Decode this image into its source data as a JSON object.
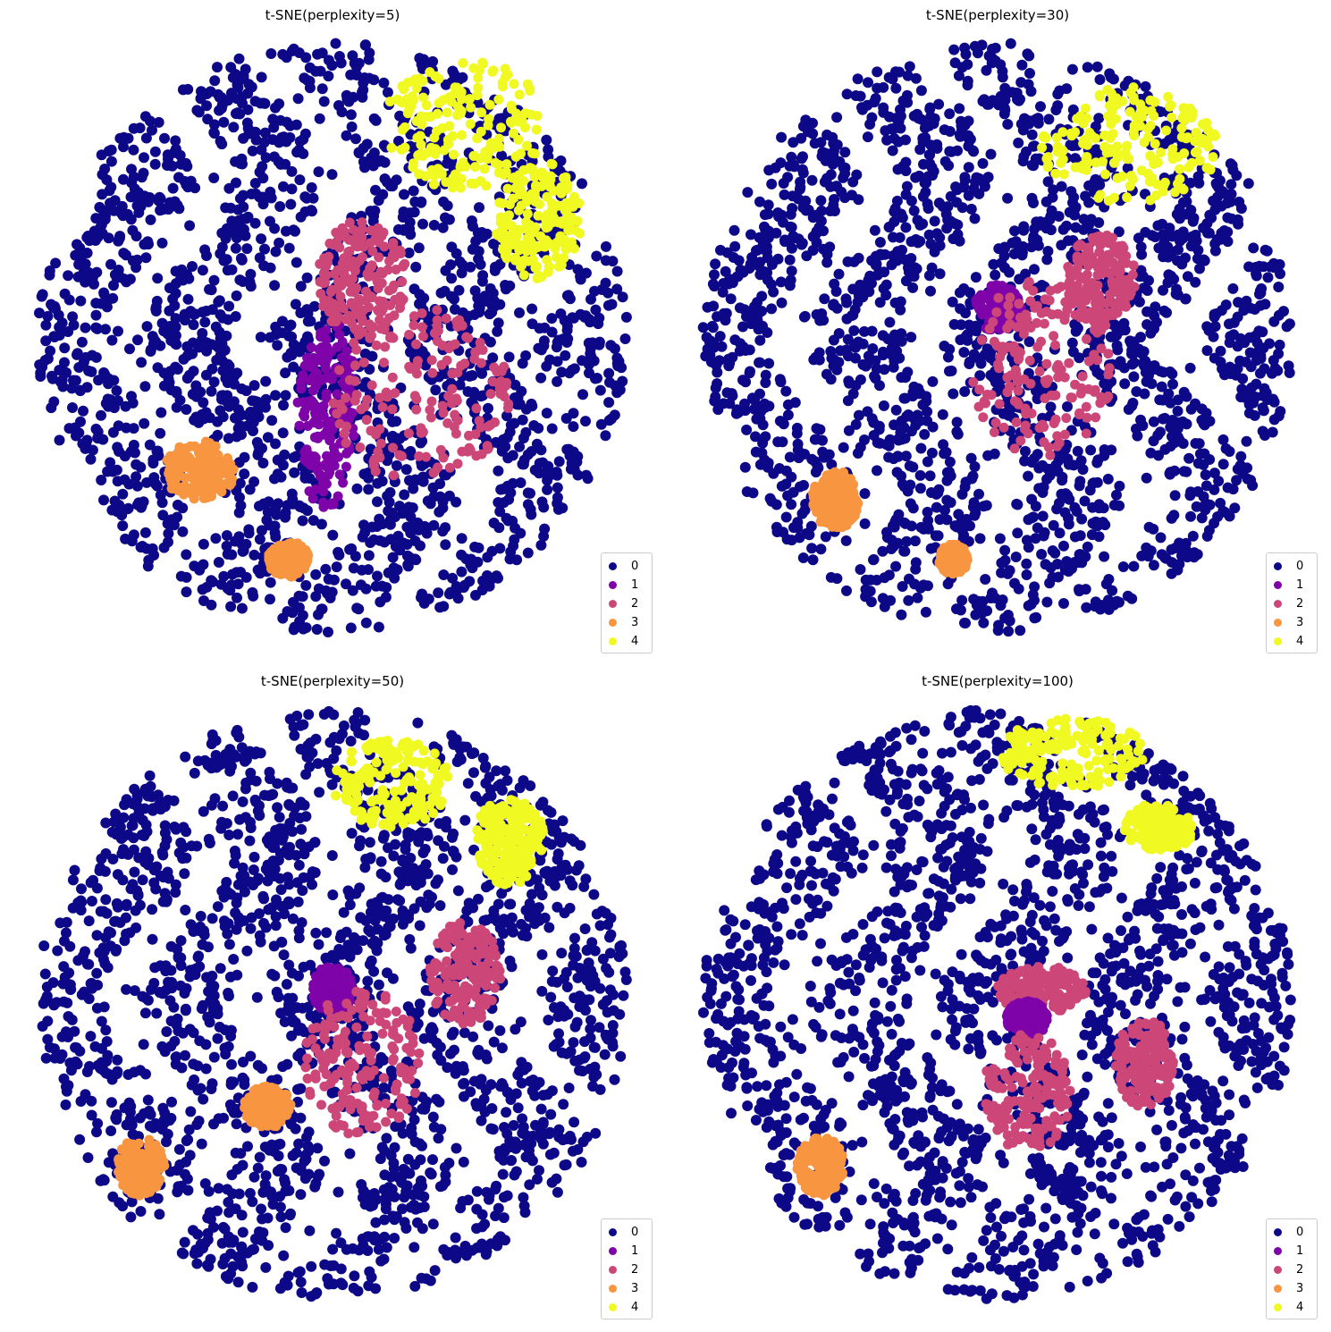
{
  "colors": [
    "#0d0887",
    "#7e03a8",
    "#cc4778",
    "#f89540",
    "#f0f921"
  ],
  "chart_data": [
    {
      "type": "scatter",
      "title": "t-SNE(perplexity=5)",
      "axes": "off",
      "legend": {
        "placement": "lower-right",
        "entries": [
          "0",
          "1",
          "2",
          "3",
          "4"
        ]
      },
      "clusters": [
        {
          "cls": 0,
          "cx": 0,
          "cy": 0,
          "rx": 1.0,
          "ry": 1.0
        },
        {
          "cls": 4,
          "cx": 0.45,
          "cy": 0.72,
          "rx": 0.28,
          "ry": 0.22
        },
        {
          "cls": 4,
          "cx": 0.7,
          "cy": 0.4,
          "rx": 0.15,
          "ry": 0.2
        },
        {
          "cls": 1,
          "cx": -0.02,
          "cy": -0.25,
          "rx": 0.1,
          "ry": 0.35
        },
        {
          "cls": 2,
          "cx": 0.3,
          "cy": -0.2,
          "rx": 0.3,
          "ry": 0.3
        },
        {
          "cls": 2,
          "cx": 0.1,
          "cy": 0.2,
          "rx": 0.15,
          "ry": 0.2
        },
        {
          "cls": 3,
          "cx": -0.45,
          "cy": -0.45,
          "rx": 0.12,
          "ry": 0.1
        },
        {
          "cls": 3,
          "cx": -0.15,
          "cy": -0.75,
          "rx": 0.07,
          "ry": 0.06
        }
      ]
    },
    {
      "type": "scatter",
      "title": "t-SNE(perplexity=30)",
      "axes": "off",
      "legend": {
        "placement": "lower-right",
        "entries": [
          "0",
          "1",
          "2",
          "3",
          "4"
        ]
      },
      "clusters": [
        {
          "cls": 0,
          "cx": 0,
          "cy": 0,
          "rx": 1.0,
          "ry": 1.0
        },
        {
          "cls": 4,
          "cx": 0.45,
          "cy": 0.65,
          "rx": 0.3,
          "ry": 0.2
        },
        {
          "cls": 1,
          "cx": 0.0,
          "cy": 0.1,
          "rx": 0.08,
          "ry": 0.08
        },
        {
          "cls": 2,
          "cx": 0.15,
          "cy": -0.1,
          "rx": 0.25,
          "ry": 0.3
        },
        {
          "cls": 2,
          "cx": 0.35,
          "cy": 0.2,
          "rx": 0.12,
          "ry": 0.15
        },
        {
          "cls": 3,
          "cx": -0.55,
          "cy": -0.55,
          "rx": 0.08,
          "ry": 0.1
        },
        {
          "cls": 3,
          "cx": -0.15,
          "cy": -0.75,
          "rx": 0.05,
          "ry": 0.05
        }
      ]
    },
    {
      "type": "scatter",
      "title": "t-SNE(perplexity=50)",
      "axes": "off",
      "legend": {
        "placement": "lower-right",
        "entries": [
          "0",
          "1",
          "2",
          "3",
          "4"
        ]
      },
      "clusters": [
        {
          "cls": 0,
          "cx": 0,
          "cy": 0,
          "rx": 1.0,
          "ry": 1.0
        },
        {
          "cls": 4,
          "cx": 0.2,
          "cy": 0.75,
          "rx": 0.2,
          "ry": 0.15
        },
        {
          "cls": 4,
          "cx": 0.6,
          "cy": 0.55,
          "rx": 0.12,
          "ry": 0.15
        },
        {
          "cls": 1,
          "cx": 0.0,
          "cy": 0.05,
          "rx": 0.07,
          "ry": 0.08
        },
        {
          "cls": 2,
          "cx": 0.1,
          "cy": -0.2,
          "rx": 0.2,
          "ry": 0.25
        },
        {
          "cls": 2,
          "cx": 0.45,
          "cy": 0.1,
          "rx": 0.12,
          "ry": 0.18
        },
        {
          "cls": 3,
          "cx": -0.65,
          "cy": -0.55,
          "rx": 0.08,
          "ry": 0.1
        },
        {
          "cls": 3,
          "cx": -0.22,
          "cy": -0.35,
          "rx": 0.08,
          "ry": 0.07
        }
      ]
    },
    {
      "type": "scatter",
      "title": "t-SNE(perplexity=100)",
      "axes": "off",
      "legend": {
        "placement": "lower-right",
        "entries": [
          "0",
          "1",
          "2",
          "3",
          "4"
        ]
      },
      "clusters": [
        {
          "cls": 0,
          "cx": 0,
          "cy": 0,
          "rx": 1.0,
          "ry": 1.0
        },
        {
          "cls": 4,
          "cx": 0.25,
          "cy": 0.85,
          "rx": 0.25,
          "ry": 0.12
        },
        {
          "cls": 4,
          "cx": 0.55,
          "cy": 0.6,
          "rx": 0.12,
          "ry": 0.08
        },
        {
          "cls": 2,
          "cx": 0.15,
          "cy": 0.05,
          "rx": 0.15,
          "ry": 0.08
        },
        {
          "cls": 1,
          "cx": 0.1,
          "cy": -0.05,
          "rx": 0.07,
          "ry": 0.06
        },
        {
          "cls": 2,
          "cx": 0.1,
          "cy": -0.3,
          "rx": 0.15,
          "ry": 0.2
        },
        {
          "cls": 3,
          "cx": -0.6,
          "cy": -0.55,
          "rx": 0.08,
          "ry": 0.1
        },
        {
          "cls": 2,
          "cx": 0.5,
          "cy": -0.2,
          "rx": 0.1,
          "ry": 0.15
        }
      ]
    }
  ]
}
